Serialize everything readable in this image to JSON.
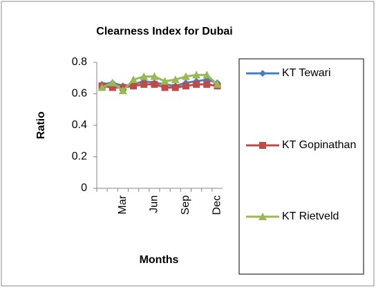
{
  "chart_data": {
    "type": "line",
    "title": "Clearness Index for Dubai",
    "x_label": "Months",
    "y_label": "Ratio",
    "categories": [
      null,
      null,
      "Mar",
      null,
      null,
      "Jun",
      null,
      null,
      "Sep",
      null,
      null,
      "Dec"
    ],
    "series": [
      {
        "name": "KT Tewari",
        "color": "#4a7ebb",
        "marker": "diamond",
        "values": [
          0.66,
          0.67,
          0.65,
          0.66,
          0.68,
          0.67,
          0.66,
          0.65,
          0.67,
          0.68,
          0.69,
          0.67
        ]
      },
      {
        "name": "KT Gopinathan",
        "color": "#be4b48",
        "marker": "square",
        "values": [
          0.65,
          0.64,
          0.64,
          0.65,
          0.66,
          0.66,
          0.64,
          0.64,
          0.65,
          0.66,
          0.66,
          0.65
        ]
      },
      {
        "name": "KT Rietveld",
        "color": "#98b954",
        "marker": "triangle",
        "values": [
          0.64,
          0.67,
          0.62,
          0.69,
          0.71,
          0.71,
          0.68,
          0.69,
          0.71,
          0.72,
          0.72,
          0.66
        ]
      }
    ],
    "ylim": [
      0,
      0.8
    ],
    "yticks": [
      0,
      0.2,
      0.4,
      0.6,
      0.8
    ],
    "grid": false
  }
}
